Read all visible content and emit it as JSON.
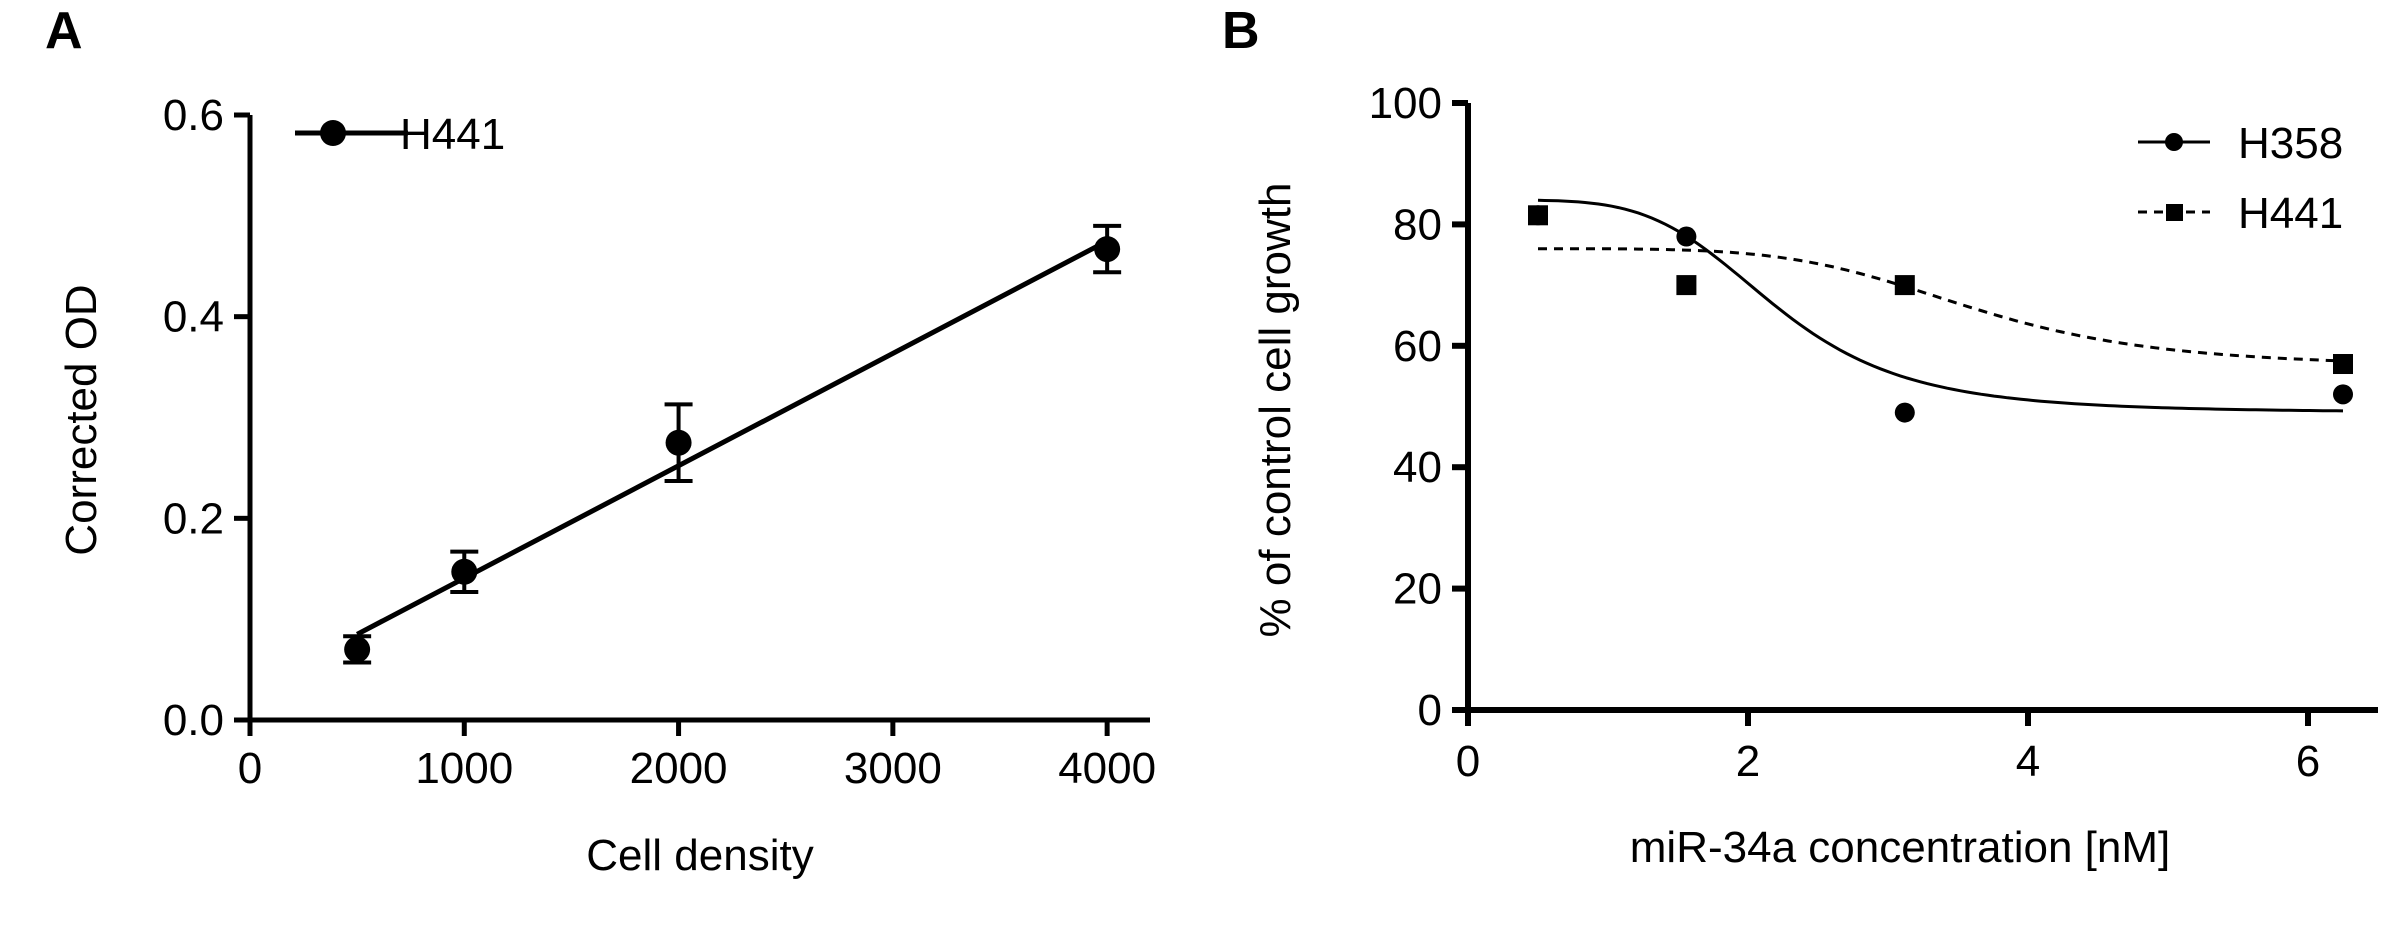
{
  "chart_data": [
    {
      "panel": "A",
      "type": "scatter",
      "xlabel": "Cell density",
      "ylabel": "Corrected OD",
      "xlim": [
        0,
        4200
      ],
      "ylim": [
        0,
        0.6
      ],
      "xticks": [
        0,
        1000,
        2000,
        3000,
        4000
      ],
      "yticks": [
        0.0,
        0.2,
        0.4,
        0.6
      ],
      "ytick_labels": [
        "0.0",
        "0.2",
        "0.4",
        "0.6"
      ],
      "legend": "top-left",
      "grid": false,
      "series": [
        {
          "name": "H441",
          "marker": "circle",
          "line": "solid",
          "x": [
            500,
            1000,
            2000,
            4000
          ],
          "y": [
            0.07,
            0.147,
            0.275,
            0.467
          ],
          "yerr": [
            0.013,
            0.02,
            0.038,
            0.023
          ],
          "fit": {
            "kind": "linear",
            "x": [
              500,
              4000
            ],
            "y": [
              0.085,
              0.475
            ]
          }
        }
      ]
    },
    {
      "panel": "B",
      "type": "scatter",
      "xlabel": "miR-34a concentration [nM]",
      "ylabel": "% of control cell growth",
      "xlim": [
        0,
        6.5
      ],
      "ylim": [
        0,
        100
      ],
      "xticks": [
        0,
        2,
        4,
        6
      ],
      "yticks": [
        0,
        20,
        40,
        60,
        80,
        100
      ],
      "legend": "top-right",
      "grid": false,
      "series": [
        {
          "name": "H358",
          "marker": "circle",
          "line": "solid",
          "x": [
            0.5,
            1.56,
            3.12,
            6.25
          ],
          "y": [
            81.5,
            78,
            49,
            52
          ],
          "fit": {
            "kind": "sigmoid",
            "top": 84,
            "bottom": 49,
            "mid": 2.2,
            "slope": 2.1,
            "x_range": [
              0.5,
              6.25
            ]
          }
        },
        {
          "name": "H441",
          "marker": "square",
          "line": "dashed",
          "x": [
            0.5,
            1.56,
            3.12,
            6.25
          ],
          "y": [
            81.5,
            70,
            70,
            57
          ],
          "fit": {
            "kind": "sigmoid",
            "top": 76,
            "bottom": 56.5,
            "mid": 3.6,
            "slope": 2.4,
            "x_range": [
              0.5,
              6.25
            ]
          }
        }
      ]
    }
  ]
}
